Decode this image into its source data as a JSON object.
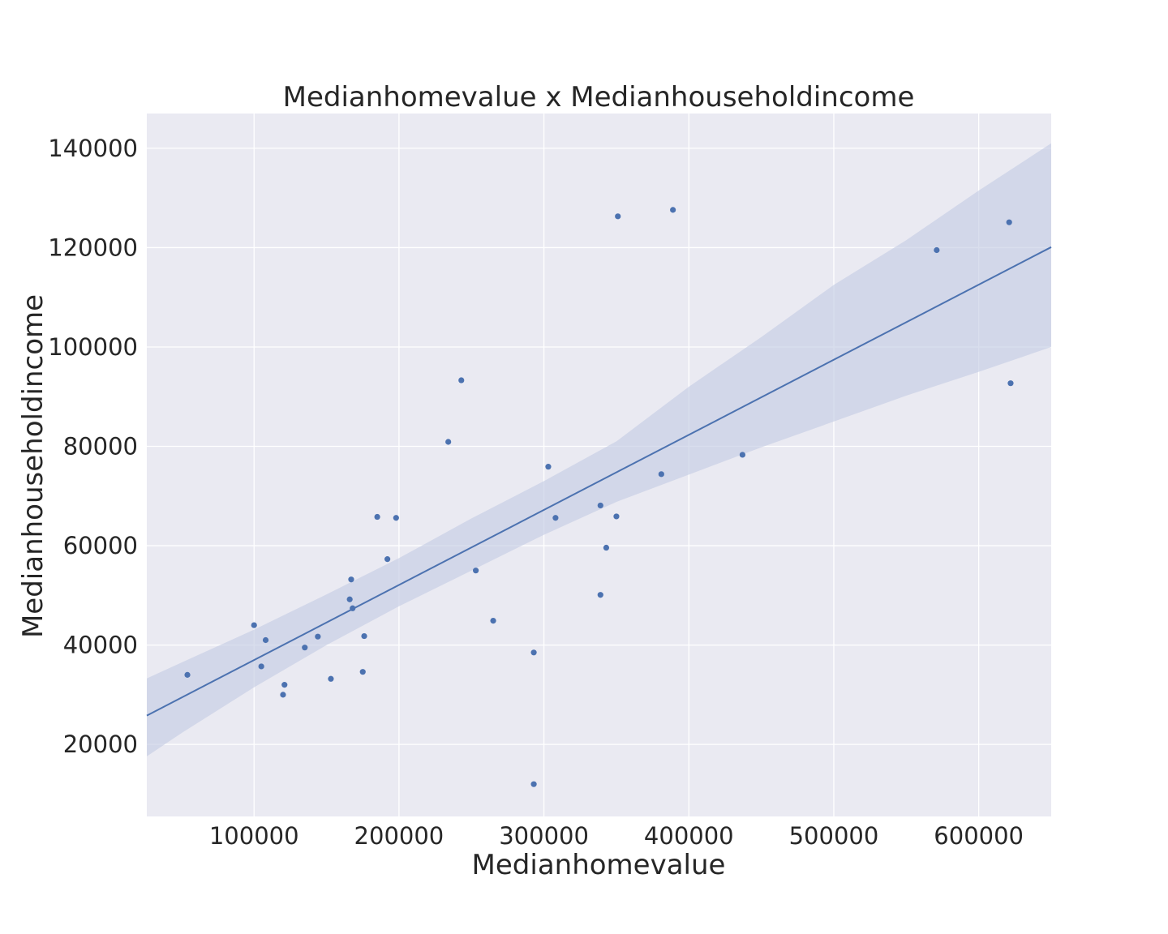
{
  "chart_data": {
    "type": "scatter",
    "title": "Medianhomevalue x Medianhouseholdincome",
    "xlabel": "Medianhomevalue",
    "ylabel": "Medianhouseholdincome",
    "xlim": [
      26000,
      650000
    ],
    "ylim": [
      5500,
      147000
    ],
    "xticks": [
      100000,
      200000,
      300000,
      400000,
      500000,
      600000
    ],
    "yticks": [
      20000,
      40000,
      60000,
      80000,
      100000,
      120000,
      140000
    ],
    "xtick_labels": [
      "100000",
      "200000",
      "300000",
      "400000",
      "500000",
      "600000"
    ],
    "ytick_labels": [
      "20000",
      "40000",
      "60000",
      "80000",
      "100000",
      "120000",
      "140000"
    ],
    "grid": true,
    "colors": {
      "background": "#eaeaf2",
      "grid": "#ffffff",
      "points": "#4c72b0",
      "line": "#4c72b0",
      "band": "#c5cde3"
    },
    "points": [
      {
        "x": 54000,
        "y": 34000
      },
      {
        "x": 100000,
        "y": 44000
      },
      {
        "x": 105000,
        "y": 35700
      },
      {
        "x": 108000,
        "y": 41000
      },
      {
        "x": 120000,
        "y": 30000
      },
      {
        "x": 121000,
        "y": 32000
      },
      {
        "x": 135000,
        "y": 39500
      },
      {
        "x": 144000,
        "y": 41700
      },
      {
        "x": 153000,
        "y": 33200
      },
      {
        "x": 166000,
        "y": 49200
      },
      {
        "x": 167000,
        "y": 53200
      },
      {
        "x": 168000,
        "y": 47400
      },
      {
        "x": 175000,
        "y": 34600
      },
      {
        "x": 176000,
        "y": 41800
      },
      {
        "x": 185000,
        "y": 65800
      },
      {
        "x": 192000,
        "y": 57300
      },
      {
        "x": 198000,
        "y": 65600
      },
      {
        "x": 234000,
        "y": 80900
      },
      {
        "x": 243000,
        "y": 93300
      },
      {
        "x": 253000,
        "y": 55000
      },
      {
        "x": 265000,
        "y": 44900
      },
      {
        "x": 293000,
        "y": 38500
      },
      {
        "x": 293000,
        "y": 12000
      },
      {
        "x": 303000,
        "y": 75900
      },
      {
        "x": 308000,
        "y": 65600
      },
      {
        "x": 339000,
        "y": 68100
      },
      {
        "x": 339000,
        "y": 50100
      },
      {
        "x": 343000,
        "y": 59600
      },
      {
        "x": 350000,
        "y": 65900
      },
      {
        "x": 351000,
        "y": 126300
      },
      {
        "x": 381000,
        "y": 74400
      },
      {
        "x": 389000,
        "y": 127600
      },
      {
        "x": 437000,
        "y": 78300
      },
      {
        "x": 571000,
        "y": 119500
      },
      {
        "x": 621000,
        "y": 125100
      },
      {
        "x": 622000,
        "y": 92700
      }
    ],
    "regression_line": {
      "x": [
        26000,
        650000
      ],
      "y": [
        25800,
        120100
      ]
    },
    "confidence_band": {
      "x": [
        26000,
        50000,
        100000,
        150000,
        200000,
        250000,
        300000,
        350000,
        400000,
        450000,
        500000,
        550000,
        600000,
        650000
      ],
      "upper": [
        33300,
        36500,
        43100,
        50200,
        57500,
        65500,
        73000,
        81000,
        92000,
        102000,
        112500,
        121500,
        131500,
        141000
      ],
      "lower": [
        17600,
        22300,
        31500,
        40000,
        47800,
        55000,
        62200,
        68800,
        74300,
        79800,
        85000,
        90200,
        95000,
        100000
      ]
    }
  }
}
